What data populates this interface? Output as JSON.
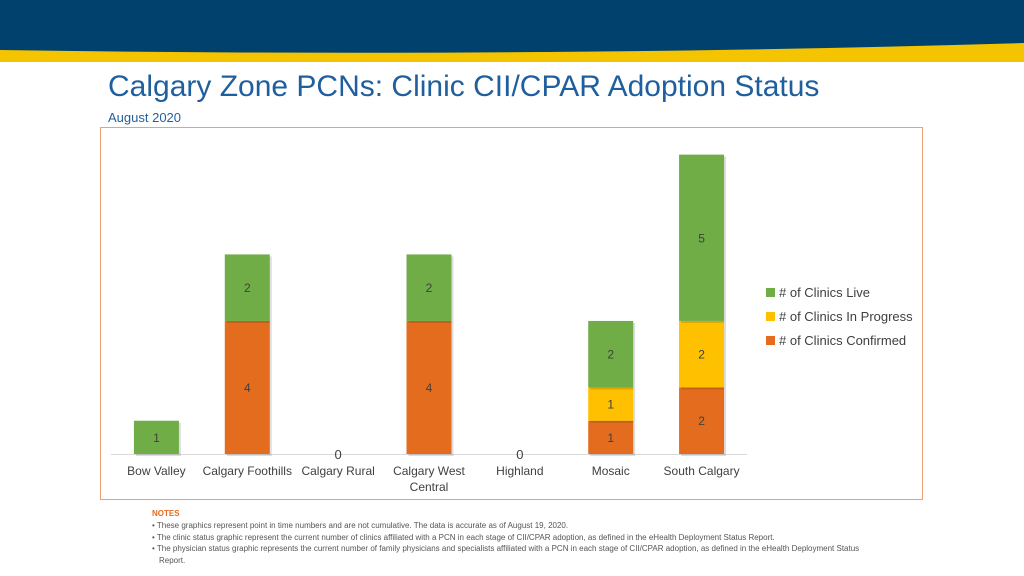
{
  "header": {
    "title": "Calgary Zone PCNs: Clinic CII/CPAR Adoption Status",
    "subtitle": "August 2020"
  },
  "colors": {
    "band_navy": "#00416e",
    "band_gold": "#f4c400",
    "title_blue": "#1f5f9e",
    "frame_orange": "#f0a070",
    "confirmed": "#e36c1e",
    "in_progress": "#ffc000",
    "live": "#70ad47"
  },
  "chart_data": {
    "type": "bar",
    "stacked": true,
    "categories": [
      "Bow Valley",
      "Calgary Foothills",
      "Calgary Rural",
      "Calgary West Central",
      "Highland",
      "Mosaic",
      "South Calgary"
    ],
    "category_lines": [
      [
        "Bow Valley"
      ],
      [
        "Calgary Foothills"
      ],
      [
        "Calgary Rural"
      ],
      [
        "Calgary West",
        "Central"
      ],
      [
        "Highland"
      ],
      [
        "Mosaic"
      ],
      [
        "South Calgary"
      ]
    ],
    "series": [
      {
        "name": "# of Clinics Confirmed",
        "color": "#e36c1e",
        "values": [
          0,
          4,
          0,
          4,
          0,
          1,
          2
        ]
      },
      {
        "name": "# of Clinics In Progress",
        "color": "#ffc000",
        "values": [
          0,
          0,
          0,
          0,
          0,
          1,
          2
        ]
      },
      {
        "name": "# of Clinics Live",
        "color": "#70ad47",
        "values": [
          1,
          2,
          0,
          2,
          0,
          2,
          5
        ]
      }
    ],
    "total_labels": [
      "",
      "",
      "0",
      "",
      "0",
      "",
      ""
    ],
    "ylim": [
      0,
      9.5
    ],
    "grid": false,
    "legend_position": "right",
    "legend_entries": [
      "# of Clinics Live",
      "# of Clinics In Progress",
      "# of Clinics Confirmed"
    ]
  },
  "notes": {
    "title": "NOTES",
    "items": [
      "• These graphics represent point in time numbers and are not cumulative. The data is accurate as of August 19, 2020.",
      "• The clinic status graphic represent the current number of clinics affiliated with a PCN in each stage of CII/CPAR adoption, as defined in the eHealth Deployment Status Report.",
      "• The physician status graphic represents the current number of family physicians and specialists affiliated with a PCN in each stage of CII/CPAR adoption, as defined in the eHealth Deployment Status Report."
    ]
  }
}
